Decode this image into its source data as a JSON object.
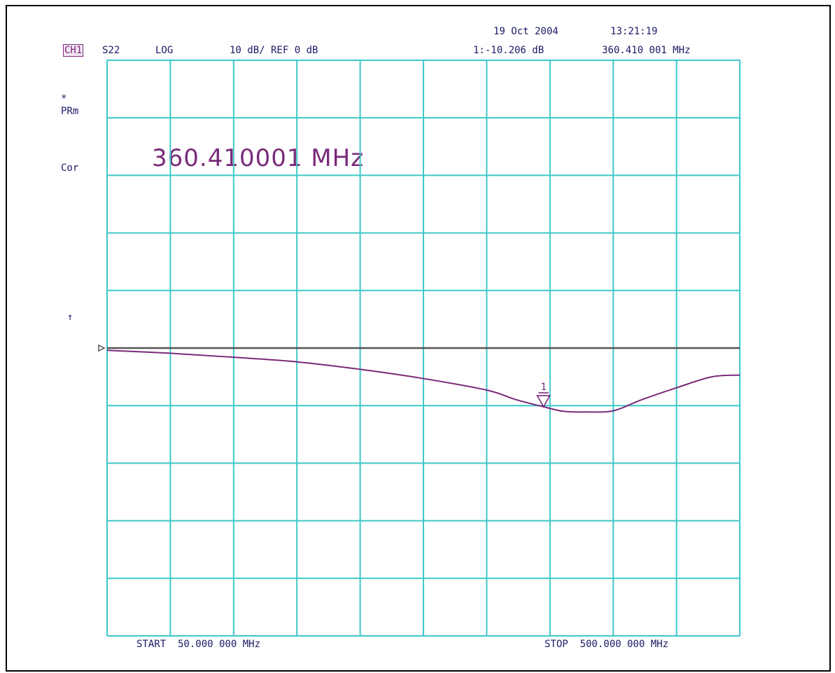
{
  "header": {
    "date": "19 Oct 2004",
    "time": "13:21:19",
    "channel": "CH1",
    "parameter": "S22",
    "format": "LOG",
    "scale": "10 dB/ REF 0 dB",
    "marker_readout": "1:-10.206 dB",
    "marker_freq": "360.410 001 MHz"
  },
  "side_labels": {
    "star": "*",
    "prm": "PRm",
    "cor": "Cor",
    "ref_arrow": "↑"
  },
  "marker": {
    "big_readout": "360.410001 MHz",
    "number_label": "1",
    "freq_mhz": 360.41,
    "value_db": -10.206
  },
  "footer": {
    "start": "START  50.000 000 MHz",
    "stop": "STOP  500.000 000 MHz"
  },
  "colors": {
    "grid": "#3fc8c8",
    "trace": "#7a2a7a",
    "reference": "#555555",
    "text": "#1a1a66"
  },
  "chart_data": {
    "type": "line",
    "title": "",
    "xlabel": "",
    "ylabel": "",
    "x_unit": "MHz",
    "y_unit": "dB",
    "xlim": [
      50,
      500
    ],
    "ylim": [
      -50,
      50
    ],
    "grid": true,
    "x_divisions": 10,
    "y_divisions": 10,
    "reference_level": 0,
    "series": [
      {
        "x": [
          50,
          95,
          140,
          185,
          230,
          275,
          320,
          340,
          360.41,
          375,
          390,
          410,
          430,
          455,
          480,
          500
        ],
        "y": [
          -0.4,
          -0.9,
          -1.6,
          -2.4,
          -3.7,
          -5.3,
          -7.3,
          -8.9,
          -10.2,
          -11.0,
          -11.1,
          -10.9,
          -9.0,
          -6.9,
          -5.0,
          -4.7
        ]
      }
    ]
  }
}
